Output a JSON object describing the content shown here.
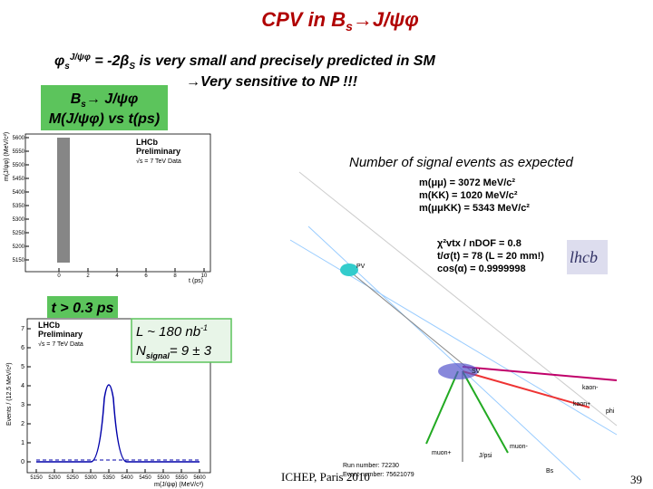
{
  "title": {
    "main": "CPV in B",
    "sub": "s",
    "rest": "→J/ψφ"
  },
  "statement": {
    "phi": "φ",
    "sub": "s",
    "sup": "J/ψφ",
    "eq": " = -2β",
    "eqsub": "S",
    "rest": " is very small and precisely predicted in SM",
    "line2": "→Very sensitive to NP !!!"
  },
  "box_top": {
    "a": "B",
    "sub": "s",
    "b": "→ J/ψφ",
    "line2": "M(J/ψφ) vs t(ps)"
  },
  "note": "Number of signal events as expected",
  "plot_top": {
    "label1": "LHCb",
    "label2": "Preliminary",
    "label3": "√s = 7 TeV Data",
    "x_label": "t (ps)",
    "y_label": "m(J/ψφ) (MeV/c²)",
    "xticks": [
      0,
      2,
      4,
      6,
      8,
      10
    ],
    "yticks": [
      5600,
      5550,
      5500,
      5450,
      5400,
      5350,
      5300,
      5250,
      5200,
      5150
    ]
  },
  "box_cut": "t > 0.3 ps",
  "box_lumi": {
    "l": "L ~ 180 nb",
    "l_sup": "-1",
    "n": "N",
    "n_sub": "signal",
    "n_rest": "= 9 ± 3"
  },
  "plot_bottom": {
    "label1": "LHCb",
    "label2": "Preliminary",
    "label3": "√s = 7 TeV Data",
    "x_label": "m(J/ψφ) (MeV/c²)",
    "y_label": "Events / (12.5 MeV/c²)",
    "xticks": [
      5150,
      5200,
      5250,
      5300,
      5350,
      5400,
      5450,
      5500,
      5550,
      5600
    ],
    "yticks": [
      0,
      1,
      2,
      3,
      4,
      5,
      6,
      7
    ]
  },
  "event_display": {
    "values": [
      "m(μμ) = 3072 MeV/c²",
      "m(KK) = 1020 MeV/c²",
      "m(μμKK) = 5343 MeV/c²",
      "χ²vtx / nDOF = 0.8",
      "t/σ(t) = 78  (L = 20 mm!)",
      "cos(α) = 0.9999998"
    ],
    "logo": "lhcb",
    "pv": "PV",
    "sv": "SV",
    "kaon_minus": "kaon-",
    "kaon_plus": "kaon+",
    "phi": "phi",
    "muon_plus": "muon+",
    "muon_minus": "muon-",
    "jpsi": "J/psi",
    "bs": "Bs",
    "run": "Run number: 72230",
    "event": "Event number: 75621079"
  },
  "footer": {
    "conference": "ICHEP, Paris 2010",
    "page": "39"
  }
}
